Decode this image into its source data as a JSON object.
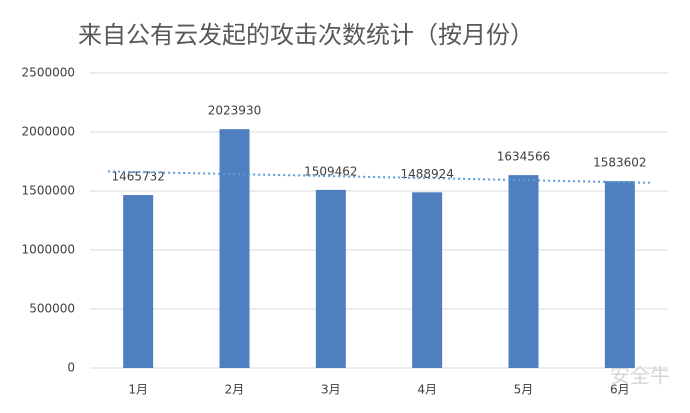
{
  "chart_data": {
    "type": "bar",
    "title": "来自公有云发起的攻击次数统计（按月份）",
    "categories": [
      "1月",
      "2月",
      "3月",
      "4月",
      "5月",
      "6月"
    ],
    "values": [
      1465732,
      2023930,
      1509462,
      1488924,
      1634566,
      1583602
    ],
    "color": "#4f7fbf",
    "trendline": true,
    "trendline_color": "#5b9bd5",
    "ylim": [
      0,
      2500000
    ],
    "yticks": [
      0,
      500000,
      1000000,
      1500000,
      2000000,
      2500000
    ],
    "grid": true
  },
  "watermark": "安全牛"
}
